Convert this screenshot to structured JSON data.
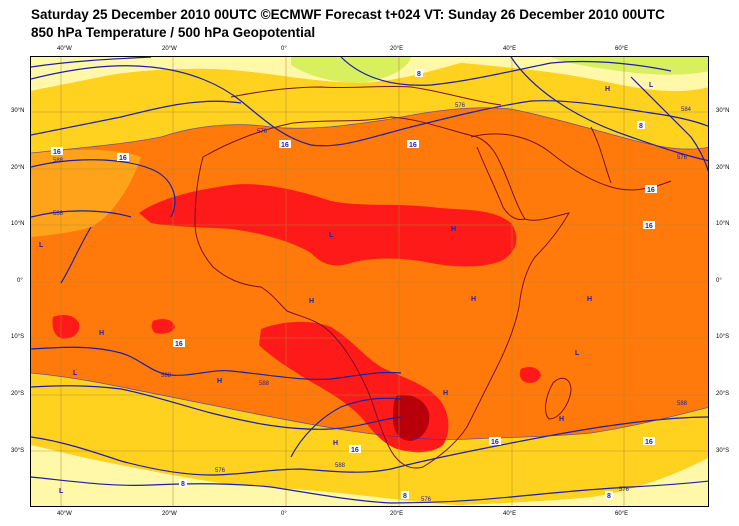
{
  "header": {
    "line1": "Saturday 25 December 2010 00UTC ©ECMWF Forecast t+024 VT: Sunday 26 December 2010 00UTC",
    "line2": "850 hPa Temperature / 500 hPa Geopotential"
  },
  "axes": {
    "lon_top": [
      "40°W",
      "20°W",
      "0°",
      "20°E",
      "40°E",
      "60°E"
    ],
    "lon_bottom": [
      "40°W",
      "20°W",
      "0°",
      "20°E",
      "40°E",
      "60°E"
    ],
    "lat_left": [
      "30°N",
      "20°N",
      "10°N",
      "0°",
      "10°S",
      "20°S",
      "30°S"
    ],
    "lat_right": [
      "30°N",
      "20°N",
      "10°N",
      "0°",
      "10°S",
      "20°S",
      "30°S"
    ]
  },
  "contour_labels": {
    "temp_16": "16",
    "temp_8": "8",
    "geo_576": "576",
    "geo_584": "584",
    "geo_588": "588"
  },
  "pressure_centers": {
    "high": "H",
    "low": "L"
  },
  "colors": {
    "background": "#ffffff",
    "pale_yellow": "#fff8a8",
    "yellow": "#ffd21f",
    "light_orange": "#ffa31a",
    "orange": "#ff7a0b",
    "red": "#ff1a1a",
    "dark_red": "#b8000b",
    "green_yellow": "#d8f060",
    "contour_blue": "#1e1ea8",
    "coast": "#7a0e2c",
    "grid": "#a7862e"
  }
}
